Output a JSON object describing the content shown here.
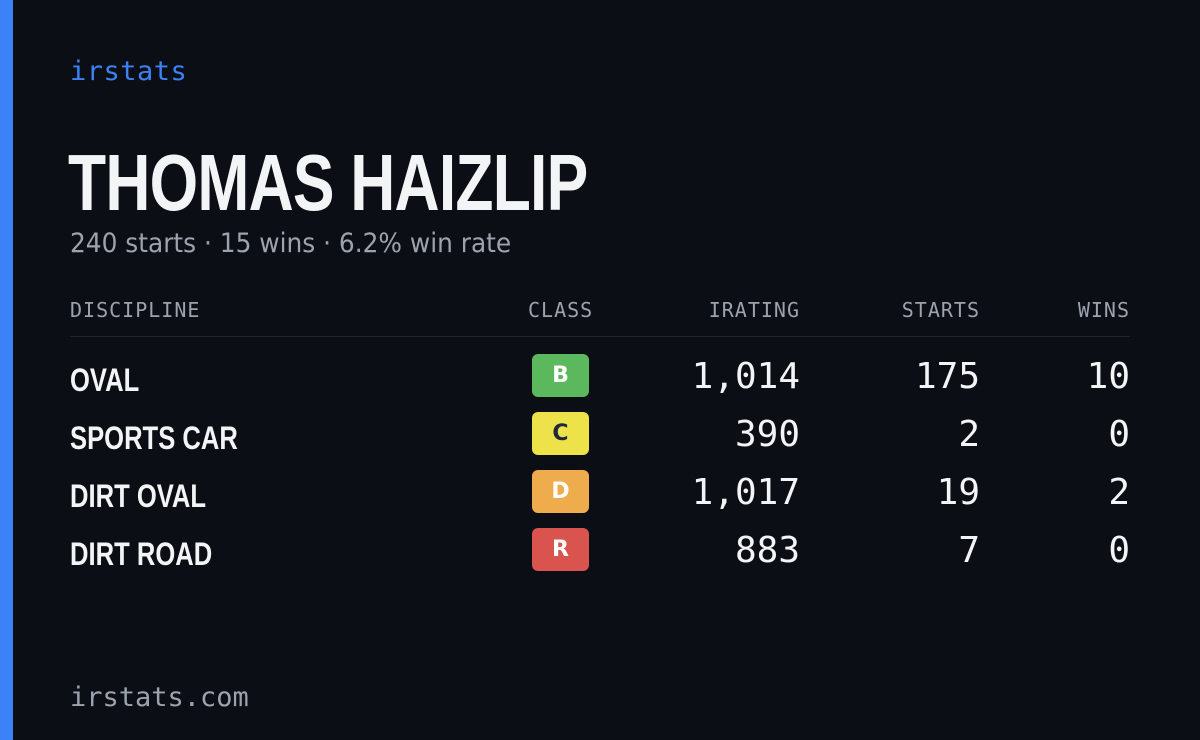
{
  "brand": "irstats",
  "driver": {
    "name": "THOMAS HAIZLIP",
    "summary": "240 starts · 15 wins · 6.2% win rate"
  },
  "table": {
    "headers": {
      "discipline": "DISCIPLINE",
      "class": "CLASS",
      "irating": "IRATING",
      "starts": "STARTS",
      "wins": "WINS"
    },
    "rows": [
      {
        "discipline": "OVAL",
        "class": "B",
        "irating": "1,014",
        "starts": "175",
        "wins": "10",
        "badge_color": "#5cb85c",
        "badge_text_color": "#ffffff"
      },
      {
        "discipline": "SPORTS CAR",
        "class": "C",
        "irating": "390",
        "starts": "2",
        "wins": "0",
        "badge_color": "#ede24a",
        "badge_text_color": "#1f2937"
      },
      {
        "discipline": "DIRT OVAL",
        "class": "D",
        "irating": "1,017",
        "starts": "19",
        "wins": "2",
        "badge_color": "#eeac4c",
        "badge_text_color": "#ffffff"
      },
      {
        "discipline": "DIRT ROAD",
        "class": "R",
        "irating": "883",
        "starts": "7",
        "wins": "0",
        "badge_color": "#d9534f",
        "badge_text_color": "#ffffff"
      }
    ]
  },
  "footer": "irstats.com",
  "colors": {
    "background": "#0b0e14",
    "accent": "#3b82f6",
    "text_primary": "#f3f4f6",
    "text_muted": "#9ca3af"
  }
}
